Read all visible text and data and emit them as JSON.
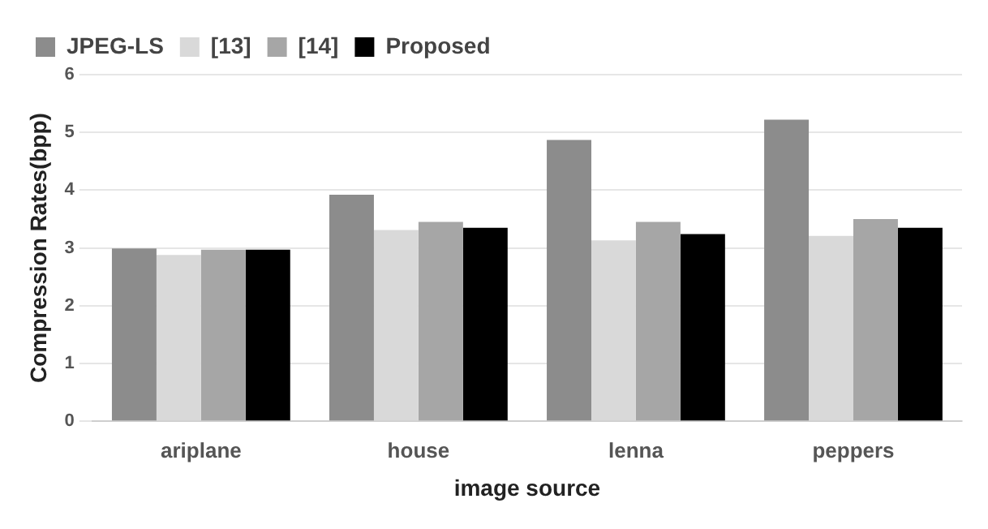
{
  "chart_data": {
    "type": "bar",
    "xlabel": "image source",
    "ylabel": "Compression Rates(bpp)",
    "categories": [
      "ariplane",
      "house",
      "lenna",
      "peppers"
    ],
    "series": [
      {
        "name": "JPEG-LS",
        "color": "#8c8c8c",
        "values": [
          2.99,
          3.92,
          4.87,
          5.22
        ]
      },
      {
        "name": "[13]",
        "color": "#d9d9d9",
        "values": [
          2.88,
          3.31,
          3.13,
          3.21
        ]
      },
      {
        "name": "[14]",
        "color": "#a6a6a6",
        "values": [
          2.97,
          3.45,
          3.45,
          3.5
        ]
      },
      {
        "name": "Proposed",
        "color": "#000000",
        "values": [
          2.97,
          3.35,
          3.24,
          3.35
        ]
      }
    ],
    "ylim": [
      0,
      6
    ],
    "yticks": [
      0,
      1,
      2,
      3,
      4,
      5,
      6
    ],
    "grid": "y",
    "legend": "top left"
  }
}
